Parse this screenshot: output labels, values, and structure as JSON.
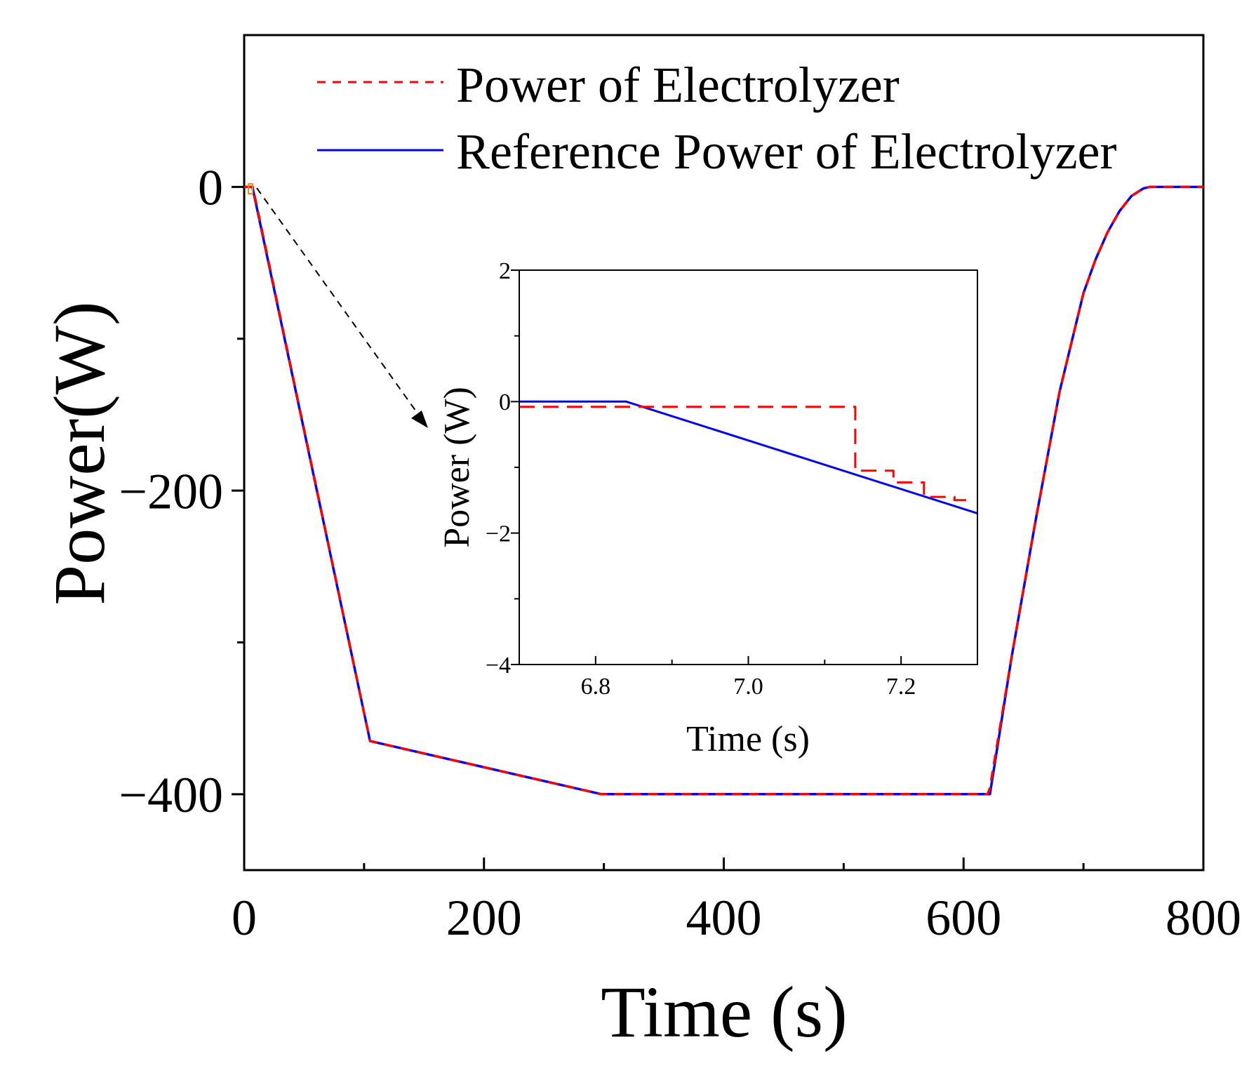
{
  "chart_data": [
    {
      "id": "main",
      "type": "line",
      "title": "",
      "xlabel": "Time (s)",
      "ylabel": "Power(W)",
      "xlim": [
        0,
        800
      ],
      "ylim": [
        -450,
        100
      ],
      "xticks": [
        0,
        200,
        400,
        600,
        800
      ],
      "xtick_labels": [
        "0",
        "200",
        "400",
        "600",
        "800"
      ],
      "xminor": [
        100,
        300,
        500,
        700
      ],
      "yticks": [
        0,
        -200,
        -400
      ],
      "ytick_labels": [
        "0",
        "−200",
        "−400"
      ],
      "yminor": [
        -100,
        -300
      ],
      "grid": false,
      "legend_position": "top-right",
      "series": [
        {
          "name": "Power of Electrolyzer",
          "color": "#ff0000",
          "style": "dashed",
          "x": [
            0,
            7.14,
            105,
            298,
            620,
            622,
            640,
            660,
            680,
            700,
            710,
            720,
            730,
            740,
            750,
            755,
            800
          ],
          "y": [
            0,
            0,
            -365,
            -400,
            -400,
            -396,
            -310,
            -220,
            -135,
            -70,
            -48,
            -30,
            -16,
            -6,
            -1,
            0,
            0
          ]
        },
        {
          "name": "Reference Power of Electrolyzer",
          "color": "#0000ff",
          "style": "solid",
          "x": [
            0,
            6.84,
            105,
            298,
            622,
            640,
            660,
            680,
            700,
            710,
            720,
            730,
            740,
            750,
            755,
            800
          ],
          "y": [
            0,
            0,
            -365,
            -400,
            -400,
            -310,
            -220,
            -135,
            -70,
            -48,
            -30,
            -16,
            -6,
            -1,
            0,
            0
          ]
        }
      ]
    },
    {
      "id": "inset",
      "type": "line",
      "title": "",
      "xlabel": "Time (s)",
      "ylabel": "Power (W)",
      "xlim": [
        6.7,
        7.3
      ],
      "ylim": [
        -4,
        2
      ],
      "xticks": [
        6.8,
        7.0,
        7.2
      ],
      "xtick_labels": [
        "6.8",
        "7.0",
        "7.2"
      ],
      "xminor": [
        6.7,
        6.9,
        7.1,
        7.3
      ],
      "yticks": [
        2,
        0,
        -2,
        -4
      ],
      "ytick_labels": [
        "2",
        "0",
        "−2",
        "−4"
      ],
      "yminor": [
        1,
        -1,
        -3
      ],
      "grid": false,
      "series": [
        {
          "name": "Power of Electrolyzer",
          "color": "#ff0000",
          "style": "dashed",
          "x": [
            6.7,
            7.14,
            7.14,
            7.19,
            7.19,
            7.23,
            7.23,
            7.27,
            7.27,
            7.29
          ],
          "y": [
            -0.08,
            -0.08,
            -1.05,
            -1.05,
            -1.23,
            -1.23,
            -1.45,
            -1.45,
            -1.5,
            -1.5
          ]
        },
        {
          "name": "Reference Power of Electrolyzer",
          "color": "#0000ff",
          "style": "solid",
          "x": [
            6.7,
            6.84,
            7.3
          ],
          "y": [
            0,
            0,
            -1.7
          ]
        }
      ]
    }
  ]
}
